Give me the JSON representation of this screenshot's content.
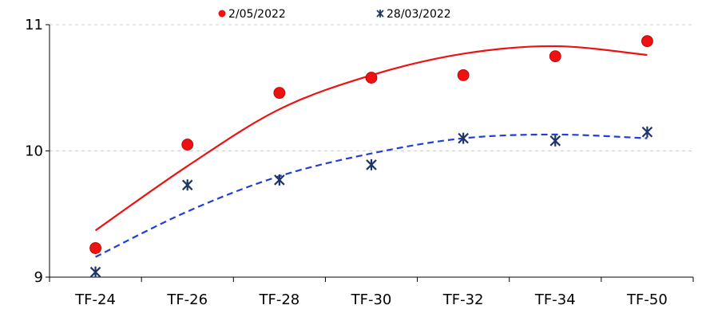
{
  "chart_data": {
    "type": "scatter",
    "categories": [
      "TF-24",
      "TF-26",
      "TF-28",
      "TF-30",
      "TF-32",
      "TF-34",
      "TF-50"
    ],
    "ylim": [
      9,
      11
    ],
    "yticks": [
      9,
      10,
      11
    ],
    "grid": "horizontal dashed",
    "legend_position": "top",
    "series": [
      {
        "name": "2/05/2022",
        "marker": "circle",
        "color": "#ee1111",
        "values": [
          9.23,
          10.05,
          10.46,
          10.58,
          10.6,
          10.75,
          10.87
        ],
        "trendline": {
          "style": "solid",
          "color": "#ee1111",
          "values": [
            9.37,
            9.88,
            10.33,
            10.6,
            10.77,
            10.83,
            10.76
          ]
        }
      },
      {
        "name": "28/03/2022",
        "marker": "star",
        "color": "#1f3566",
        "values": [
          9.04,
          9.73,
          9.77,
          9.89,
          10.1,
          10.08,
          10.15
        ],
        "trendline": {
          "style": "dashed",
          "color": "#1f3fd6",
          "values": [
            9.16,
            9.52,
            9.8,
            9.98,
            10.1,
            10.13,
            10.1
          ]
        }
      }
    ]
  }
}
